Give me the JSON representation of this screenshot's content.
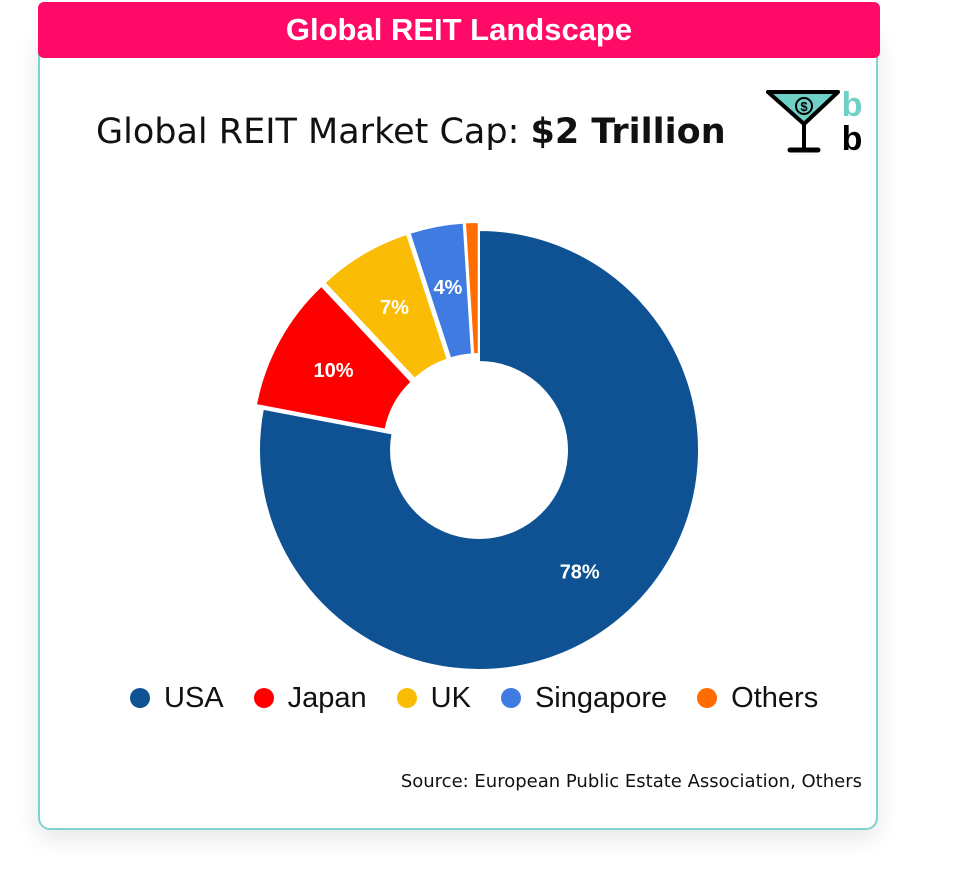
{
  "header": {
    "title": "Global REIT Landscape"
  },
  "subtitle": {
    "prefix": "Global REIT Market Cap: ",
    "value": "$2 Trillion"
  },
  "source": "Source: European Public Estate Association, Others",
  "logo": {
    "letters": [
      "b",
      "b"
    ],
    "icon": "cocktail-glass-dollar-icon"
  },
  "colors": {
    "banner": "#ff0a67",
    "border": "#7fd3cc"
  },
  "chart_data": {
    "type": "pie",
    "donut": true,
    "categories": [
      "USA",
      "Japan",
      "UK",
      "Singapore",
      "Others"
    ],
    "values": [
      78,
      10,
      7,
      4,
      1
    ],
    "labels": [
      "78%",
      "10%",
      "7%",
      "4%",
      ""
    ],
    "colors": [
      "#0f5294",
      "#ff0000",
      "#fbbc05",
      "#3f7be0",
      "#ff6d01"
    ],
    "legend_position": "bottom"
  }
}
